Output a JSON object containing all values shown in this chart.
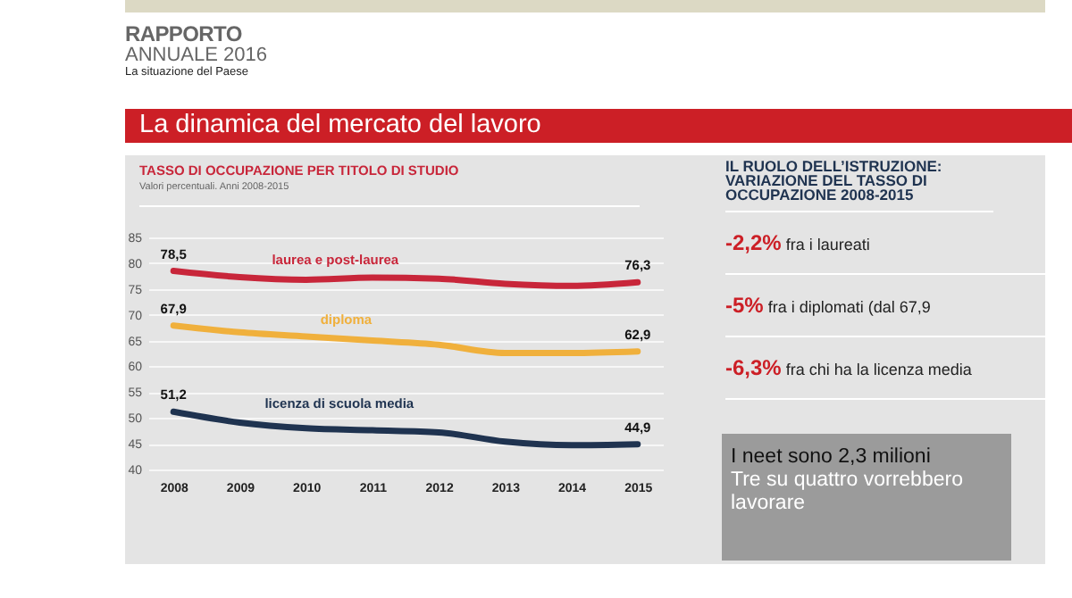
{
  "chart_data": [
    {
      "type": "line",
      "title": "TASSO DI OCCUPAZIONE PER TITOLO DI STUDIO",
      "subtitle": "Valori percentuali. Anni 2008-2015",
      "annotations": [
        "RAPPORTO",
        "ANNUALE 2016",
        "La situazione del Paese",
        "La dinamica del mercato del lavoro"
      ],
      "categories": [
        "2008",
        "2009",
        "2010",
        "2011",
        "2012",
        "2013",
        "2014",
        "2015"
      ],
      "ylim": [
        40,
        85
      ],
      "yticks": [
        40,
        45,
        50,
        55,
        60,
        65,
        70,
        75,
        80,
        85
      ],
      "grid": "y",
      "line_style": "solid",
      "series": [
        {
          "name": "laurea e post-laurea",
          "color": "#c8263a",
          "values": [
            78.5,
            77.3,
            76.8,
            77.2,
            77.0,
            76.0,
            75.6,
            76.3
          ],
          "value_labels": [
            "78,5",
            null,
            null,
            null,
            null,
            null,
            null,
            "76,3"
          ]
        },
        {
          "name": "diploma",
          "color": "#f0b03c",
          "values": [
            67.9,
            66.6,
            65.8,
            65.0,
            64.2,
            62.6,
            62.6,
            62.9
          ],
          "value_labels": [
            "67,9",
            null,
            null,
            null,
            null,
            null,
            null,
            "62,9"
          ]
        },
        {
          "name": "licenza di scuola media",
          "color": "#1f3350",
          "values": [
            51.2,
            49.1,
            48.0,
            47.6,
            47.2,
            45.4,
            44.7,
            44.9
          ],
          "value_labels": [
            "51,2",
            null,
            null,
            null,
            null,
            null,
            null,
            "44,9"
          ]
        }
      ]
    },
    {
      "type": "other",
      "title": "IL RUOLO DELL’ISTRUZIONE: VARIAZIONE DEL TASSO DI OCCUPAZIONE 2008-2015",
      "annotations": [
        "-2,2% fra i laureati",
        "-5% fra i diplomati (dal 67,9",
        "-6,3% fra chi ha la licenza media"
      ]
    },
    {
      "type": "other",
      "annotations": [
        "I neet sono 2,3 milioni",
        "Tre su quattro vorrebbero lavorare"
      ]
    }
  ]
}
